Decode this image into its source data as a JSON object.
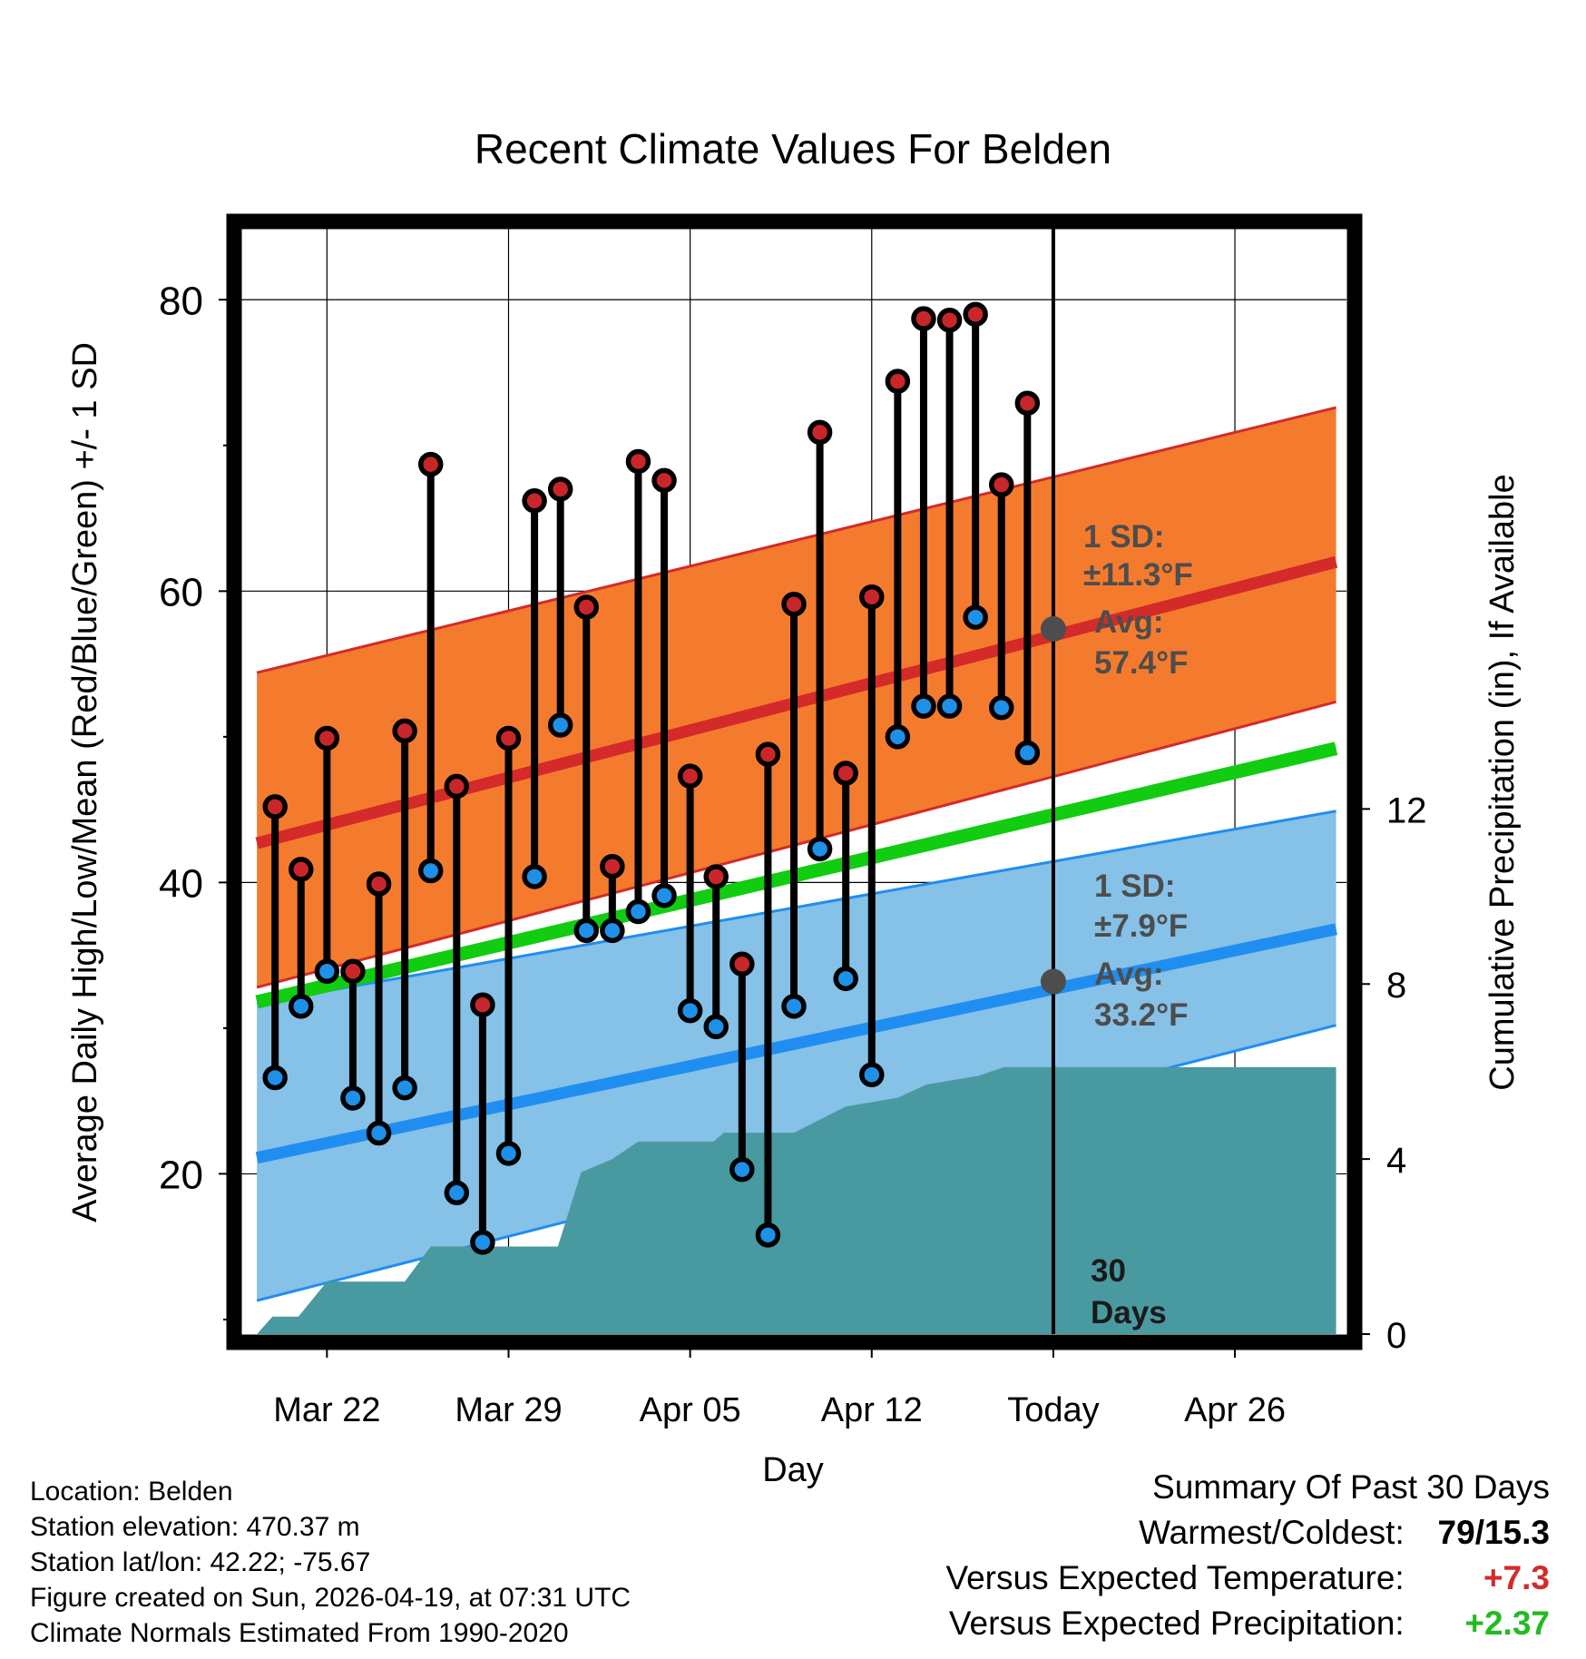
{
  "chart_data": {
    "type": "line",
    "title": "Recent Climate Values For Belden",
    "xlabel": "Day",
    "ylabel": "Average Daily High/Low/Mean (Red/Blue/Green) +/- 1 SD",
    "y2label": "Cumulative Precipitation (in), If Available",
    "xlim": [
      -3.3,
      39.3
    ],
    "ylim": [
      9,
      85
    ],
    "y2lim": [
      0,
      25.3
    ],
    "x_ticks": [
      {
        "x": 0,
        "label": "Mar 22"
      },
      {
        "x": 7,
        "label": "Mar 29"
      },
      {
        "x": 14,
        "label": "Apr 05"
      },
      {
        "x": 21,
        "label": "Apr 12"
      },
      {
        "x": 28,
        "label": "Today"
      },
      {
        "x": 35,
        "label": "Apr 26"
      }
    ],
    "y_ticks": [
      20,
      40,
      60,
      80
    ],
    "y_minor_ticks": [
      10,
      30,
      50,
      70
    ],
    "y2_ticks": [
      0,
      4,
      8,
      12
    ],
    "grid": true,
    "today_x": 28,
    "days_label": "30\nDays",
    "daily_x": [
      -2,
      -1,
      0,
      1,
      2,
      3,
      4,
      5,
      6,
      7,
      8,
      9,
      10,
      11,
      12,
      13,
      14,
      15,
      16,
      17,
      18,
      19,
      20,
      21,
      22,
      23,
      24,
      25,
      26,
      27
    ],
    "daily_highs": [
      45.2,
      40.9,
      49.9,
      33.9,
      39.9,
      50.4,
      68.7,
      46.6,
      31.6,
      49.9,
      66.2,
      67.0,
      58.9,
      41.1,
      68.9,
      67.6,
      47.3,
      40.4,
      34.4,
      48.8,
      59.1,
      70.9,
      47.5,
      59.6,
      74.4,
      78.7,
      78.6,
      79.0,
      67.3,
      72.9
    ],
    "daily_lows": [
      26.6,
      31.5,
      33.9,
      25.2,
      22.8,
      25.9,
      40.8,
      18.7,
      15.3,
      21.4,
      40.4,
      50.8,
      36.7,
      36.7,
      38.0,
      39.1,
      31.2,
      30.1,
      20.3,
      15.8,
      31.5,
      42.3,
      33.4,
      26.8,
      50.0,
      52.1,
      52.1,
      58.2,
      52.0,
      48.9
    ],
    "normals": {
      "x_range": [
        -2.7,
        38.9
      ],
      "high_mean": [
        42.7,
        62.0
      ],
      "high_upper": [
        54.4,
        72.6
      ],
      "high_lower": [
        32.8,
        52.4
      ],
      "low_mean": [
        21.1,
        36.8
      ],
      "low_upper": [
        31.7,
        44.9
      ],
      "low_lower": [
        11.3,
        30.2
      ],
      "daily_mean": [
        31.8,
        49.2
      ]
    },
    "precip_cumulative": [
      [
        -2.7,
        0
      ],
      [
        -2.1,
        0.4
      ],
      [
        -1.1,
        0.4
      ],
      [
        0,
        1.2
      ],
      [
        3,
        1.2
      ],
      [
        4,
        2.0
      ],
      [
        8.9,
        2.0
      ],
      [
        9.8,
        3.7
      ],
      [
        11.0,
        4.0
      ],
      [
        12.0,
        4.4
      ],
      [
        14.9,
        4.4
      ],
      [
        15.3,
        4.6
      ],
      [
        18.0,
        4.6
      ],
      [
        20.0,
        5.2
      ],
      [
        22.0,
        5.4
      ],
      [
        23.1,
        5.7
      ],
      [
        25.1,
        5.9
      ],
      [
        26.1,
        6.1
      ],
      [
        28.0,
        6.1
      ],
      [
        38.9,
        6.1
      ]
    ],
    "annotations": {
      "high": {
        "sd_label": "1 SD:",
        "sd_value": "±11.3°F",
        "avg_label": "Avg:",
        "avg_value": "57.4°F",
        "avg": 57.4
      },
      "low": {
        "sd_label": "1 SD:",
        "sd_value": "±7.9°F",
        "avg_label": "Avg:",
        "avg_value": "33.2°F",
        "avg": 33.2
      }
    },
    "colors": {
      "high_band": "#f47b2e",
      "high_line": "#d42a2a",
      "low_band": "#86c1e8",
      "low_line": "#1f8ef0",
      "mean_line": "#11cc11",
      "precip": "#4999a1",
      "high_marker": "#c8262a",
      "low_marker": "#1e90e8",
      "annotation": "#4d4d4d"
    }
  },
  "location": {
    "name": "Location: Belden",
    "elevation": "Station elevation: 470.37 m",
    "latlon": "Station lat/lon: 42.22; -75.67",
    "created": "Figure created on Sun, 2026-04-19, at 07:31 UTC",
    "normals": "Climate Normals Estimated From 1990-2020"
  },
  "summary": {
    "title": "Summary Of Past 30 Days",
    "warmest_label": "Warmest/Coldest:",
    "warmest_value": "79/15.3",
    "temp_label": "Versus Expected Temperature:",
    "temp_value": "+7.3",
    "precip_label": "Versus Expected Precipitation:",
    "precip_value": "+2.37"
  }
}
